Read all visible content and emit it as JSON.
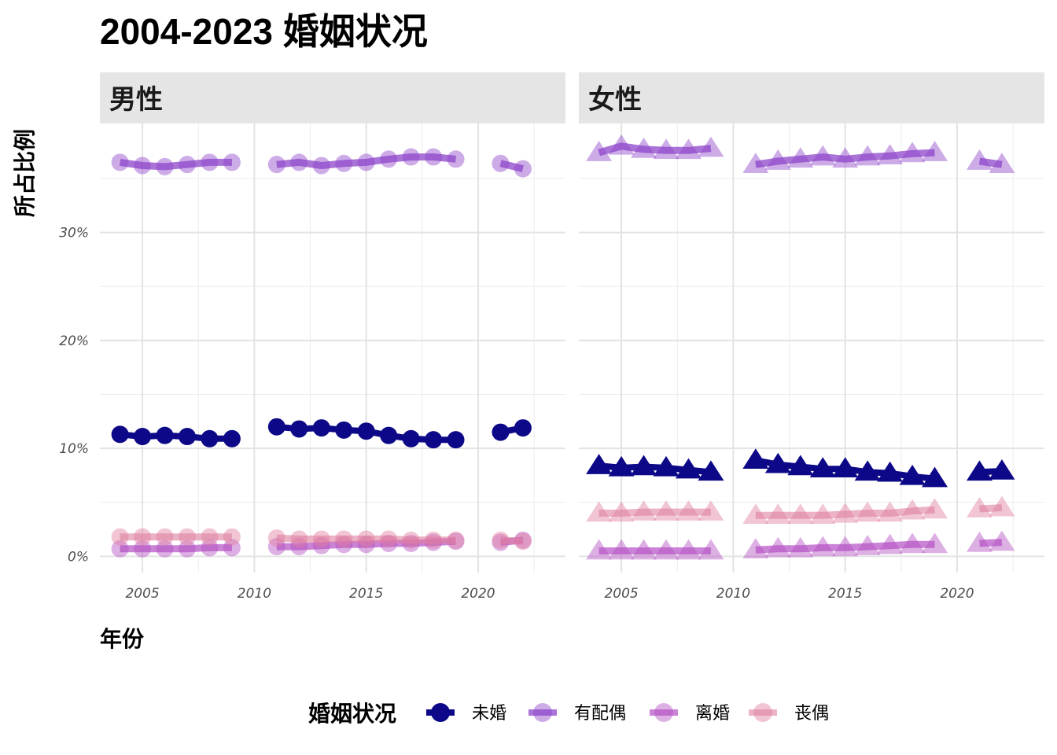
{
  "chart_data": {
    "type": "line",
    "title": "2004-2023 婚姻状况",
    "xlabel": "年份",
    "ylabel": "所占比例",
    "x_ticks": [
      "2005",
      "2010",
      "2015",
      "2020"
    ],
    "y_ticks": [
      {
        "value": 0,
        "label": "0%"
      },
      {
        "value": 10,
        "label": "10%"
      },
      {
        "value": 20,
        "label": "20%"
      },
      {
        "value": 30,
        "label": "30%"
      }
    ],
    "xlim": [
      2003.1,
      2023.9
    ],
    "ylim": [
      -1.5,
      40.1
    ],
    "grid": true,
    "legend": {
      "title": "婚姻状况",
      "position": "bottom"
    },
    "panels": [
      {
        "name": "男性",
        "marker": "circle",
        "series": [
          {
            "name": "未婚",
            "color": "#0d0887",
            "opacity": 1.0,
            "line_opacity": 1.0,
            "segments": [
              [
                [
                  2004,
                  11.3
                ],
                [
                  2005,
                  11.1
                ],
                [
                  2006,
                  11.2
                ],
                [
                  2007,
                  11.1
                ],
                [
                  2008,
                  10.9
                ],
                [
                  2009,
                  10.9
                ]
              ],
              [
                [
                  2011,
                  12.0
                ],
                [
                  2012,
                  11.8
                ],
                [
                  2013,
                  11.9
                ],
                [
                  2014,
                  11.7
                ],
                [
                  2015,
                  11.6
                ],
                [
                  2016,
                  11.2
                ],
                [
                  2017,
                  10.9
                ],
                [
                  2018,
                  10.8
                ],
                [
                  2019,
                  10.8
                ]
              ],
              [
                [
                  2021,
                  11.5
                ],
                [
                  2022,
                  11.9
                ]
              ]
            ]
          },
          {
            "name": "有配偶",
            "color": "#8e44c9",
            "opacity": 0.45,
            "line_opacity": 0.75,
            "segments": [
              [
                [
                  2004,
                  36.5
                ],
                [
                  2005,
                  36.2
                ],
                [
                  2006,
                  36.1
                ],
                [
                  2007,
                  36.3
                ],
                [
                  2008,
                  36.5
                ],
                [
                  2009,
                  36.5
                ]
              ],
              [
                [
                  2011,
                  36.3
                ],
                [
                  2012,
                  36.5
                ],
                [
                  2013,
                  36.2
                ],
                [
                  2014,
                  36.4
                ],
                [
                  2015,
                  36.5
                ],
                [
                  2016,
                  36.8
                ],
                [
                  2017,
                  37.0
                ],
                [
                  2018,
                  37.0
                ],
                [
                  2019,
                  36.8
                ]
              ],
              [
                [
                  2021,
                  36.4
                ],
                [
                  2022,
                  35.9
                ]
              ]
            ]
          },
          {
            "name": "离婚",
            "color": "#b44fc4",
            "opacity": 0.45,
            "line_opacity": 0.7,
            "segments": [
              [
                [
                  2004,
                  0.7
                ],
                [
                  2005,
                  0.7
                ],
                [
                  2006,
                  0.7
                ],
                [
                  2007,
                  0.7
                ],
                [
                  2008,
                  0.8
                ],
                [
                  2009,
                  0.8
                ]
              ],
              [
                [
                  2011,
                  0.9
                ],
                [
                  2012,
                  0.9
                ],
                [
                  2013,
                  1.0
                ],
                [
                  2014,
                  1.1
                ],
                [
                  2015,
                  1.1
                ],
                [
                  2016,
                  1.2
                ],
                [
                  2017,
                  1.2
                ],
                [
                  2018,
                  1.3
                ],
                [
                  2019,
                  1.4
                ]
              ],
              [
                [
                  2021,
                  1.3
                ],
                [
                  2022,
                  1.5
                ]
              ]
            ]
          },
          {
            "name": "丧偶",
            "color": "#e07fa0",
            "opacity": 0.45,
            "line_opacity": 0.6,
            "segments": [
              [
                [
                  2004,
                  1.8
                ],
                [
                  2005,
                  1.8
                ],
                [
                  2006,
                  1.8
                ],
                [
                  2007,
                  1.8
                ],
                [
                  2008,
                  1.8
                ],
                [
                  2009,
                  1.8
                ]
              ],
              [
                [
                  2011,
                  1.7
                ],
                [
                  2012,
                  1.6
                ],
                [
                  2013,
                  1.6
                ],
                [
                  2014,
                  1.6
                ],
                [
                  2015,
                  1.6
                ],
                [
                  2016,
                  1.6
                ],
                [
                  2017,
                  1.5
                ],
                [
                  2018,
                  1.5
                ],
                [
                  2019,
                  1.5
                ]
              ],
              [
                [
                  2021,
                  1.5
                ],
                [
                  2022,
                  1.4
                ]
              ]
            ]
          }
        ]
      },
      {
        "name": "女性",
        "marker": "triangle",
        "series": [
          {
            "name": "未婚",
            "color": "#0d0887",
            "opacity": 1.0,
            "line_opacity": 1.0,
            "segments": [
              [
                [
                  2004,
                  8.4
                ],
                [
                  2005,
                  8.2
                ],
                [
                  2006,
                  8.3
                ],
                [
                  2007,
                  8.2
                ],
                [
                  2008,
                  8.0
                ],
                [
                  2009,
                  7.8
                ]
              ],
              [
                [
                  2011,
                  8.9
                ],
                [
                  2012,
                  8.5
                ],
                [
                  2013,
                  8.3
                ],
                [
                  2014,
                  8.1
                ],
                [
                  2015,
                  8.1
                ],
                [
                  2016,
                  7.8
                ],
                [
                  2017,
                  7.7
                ],
                [
                  2018,
                  7.4
                ],
                [
                  2019,
                  7.2
                ]
              ],
              [
                [
                  2021,
                  7.8
                ],
                [
                  2022,
                  7.9
                ]
              ]
            ]
          },
          {
            "name": "有配偶",
            "color": "#8e44c9",
            "opacity": 0.45,
            "line_opacity": 0.75,
            "segments": [
              [
                [
                  2004,
                  37.4
                ],
                [
                  2005,
                  38.0
                ],
                [
                  2006,
                  37.7
                ],
                [
                  2007,
                  37.6
                ],
                [
                  2008,
                  37.6
                ],
                [
                  2009,
                  37.8
                ]
              ],
              [
                [
                  2011,
                  36.3
                ],
                [
                  2012,
                  36.6
                ],
                [
                  2013,
                  36.8
                ],
                [
                  2014,
                  37.0
                ],
                [
                  2015,
                  36.8
                ],
                [
                  2016,
                  37.0
                ],
                [
                  2017,
                  37.1
                ],
                [
                  2018,
                  37.3
                ],
                [
                  2019,
                  37.4
                ]
              ],
              [
                [
                  2021,
                  36.6
                ],
                [
                  2022,
                  36.3
                ]
              ]
            ]
          },
          {
            "name": "离婚",
            "color": "#b44fc4",
            "opacity": 0.45,
            "line_opacity": 0.7,
            "segments": [
              [
                [
                  2004,
                  0.5
                ],
                [
                  2005,
                  0.5
                ],
                [
                  2006,
                  0.5
                ],
                [
                  2007,
                  0.5
                ],
                [
                  2008,
                  0.5
                ],
                [
                  2009,
                  0.5
                ]
              ],
              [
                [
                  2011,
                  0.6
                ],
                [
                  2012,
                  0.7
                ],
                [
                  2013,
                  0.7
                ],
                [
                  2014,
                  0.8
                ],
                [
                  2015,
                  0.8
                ],
                [
                  2016,
                  0.9
                ],
                [
                  2017,
                  1.0
                ],
                [
                  2018,
                  1.1
                ],
                [
                  2019,
                  1.1
                ]
              ],
              [
                [
                  2021,
                  1.2
                ],
                [
                  2022,
                  1.3
                ]
              ]
            ]
          },
          {
            "name": "丧偶",
            "color": "#e07fa0",
            "opacity": 0.45,
            "line_opacity": 0.6,
            "segments": [
              [
                [
                  2004,
                  4.0
                ],
                [
                  2005,
                  4.0
                ],
                [
                  2006,
                  4.1
                ],
                [
                  2007,
                  4.1
                ],
                [
                  2008,
                  4.1
                ],
                [
                  2009,
                  4.1
                ]
              ],
              [
                [
                  2011,
                  3.8
                ],
                [
                  2012,
                  3.8
                ],
                [
                  2013,
                  3.8
                ],
                [
                  2014,
                  3.8
                ],
                [
                  2015,
                  3.9
                ],
                [
                  2016,
                  4.0
                ],
                [
                  2017,
                  4.0
                ],
                [
                  2018,
                  4.2
                ],
                [
                  2019,
                  4.3
                ]
              ],
              [
                [
                  2021,
                  4.4
                ],
                [
                  2022,
                  4.5
                ]
              ]
            ]
          }
        ]
      }
    ]
  }
}
